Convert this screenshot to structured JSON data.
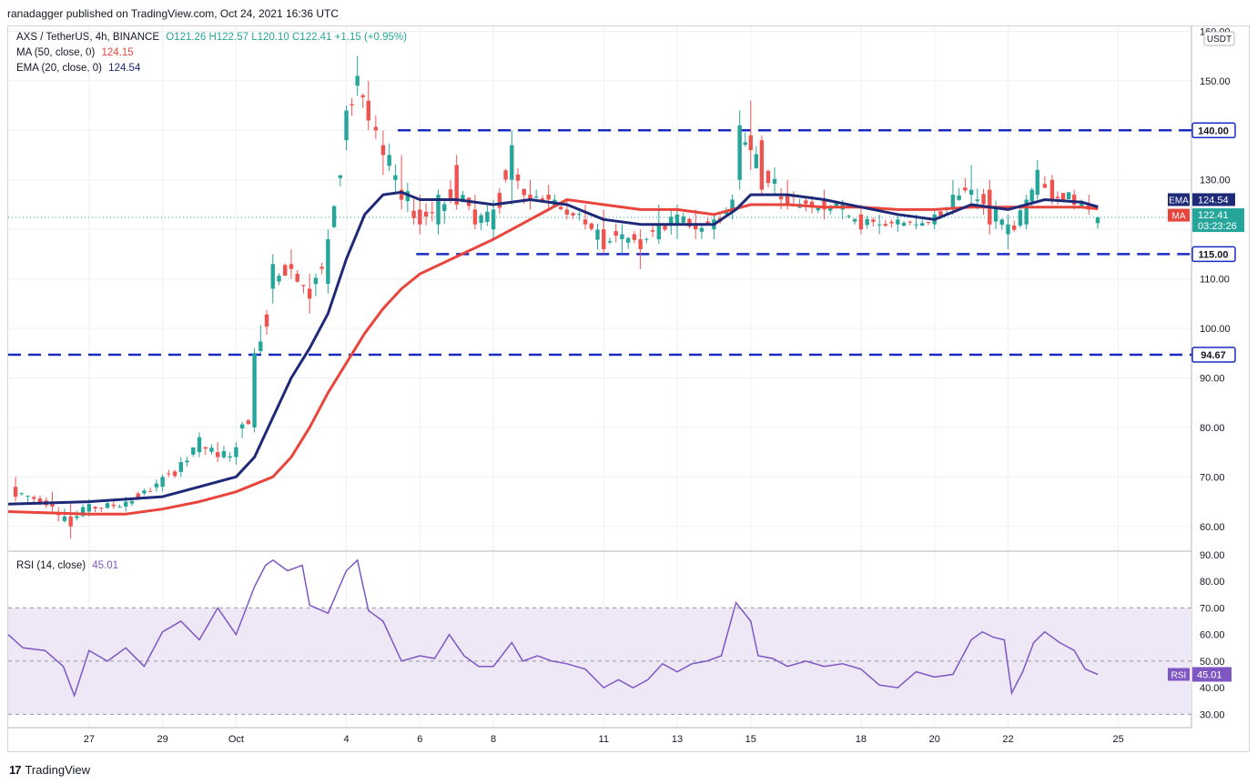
{
  "header": {
    "published": "ranadagger published on TradingView.com, Oct 24, 2021 16:36 UTC"
  },
  "legend": {
    "symbol": "AXS / TetherUS, 4h, BINANCE",
    "ohlc": "O121.26  H122.57  L120.10  C122.41  +1.15 (+0.95%)",
    "ma_label": "MA (50, close, 0)",
    "ma_value": "124.15",
    "ema_label": "EMA (20, close, 0)",
    "ema_value": "124.54",
    "rsi_label": "RSI (14, close)",
    "rsi_value": "45.01"
  },
  "footer": {
    "brand": "TradingView",
    "logo": "17"
  },
  "colors": {
    "up": "#26a69a",
    "down": "#ef5350",
    "ema": "#1e2a78",
    "ma": "#e8453c",
    "level": "#1a2bc4",
    "rsi": "#7e57c2",
    "rsi_band": "#ede7f6",
    "grid": "#eef0f3"
  },
  "chart_data": [
    {
      "type": "candlestick",
      "title": "AXS / TetherUS, 4h, BINANCE",
      "currency": "USDT",
      "ylim": [
        55,
        161
      ],
      "y_ticks": [
        "60.00",
        "70.00",
        "80.00",
        "90.00",
        "100.00",
        "110.00",
        "130.00",
        "150.00",
        "160.00"
      ],
      "x_ticks": [
        {
          "label": "27",
          "day": 27
        },
        {
          "label": "29",
          "day": 29
        },
        {
          "label": "Oct",
          "day": 31
        },
        {
          "label": "4",
          "day": 34
        },
        {
          "label": "6",
          "day": 36
        },
        {
          "label": "8",
          "day": 38
        },
        {
          "label": "11",
          "day": 41
        },
        {
          "label": "13",
          "day": 43
        },
        {
          "label": "15",
          "day": 45
        },
        {
          "label": "18",
          "day": 48
        },
        {
          "label": "20",
          "day": 50
        },
        {
          "label": "22",
          "day": 52
        },
        {
          "label": "25",
          "day": 55
        }
      ],
      "x_range_days": [
        24.8,
        56.99
      ],
      "levels": [
        {
          "label": "140.00",
          "value": 140.0,
          "from_day": 35.4
        },
        {
          "label": "115.00",
          "value": 115.0,
          "from_day": 35.9
        },
        {
          "label": "94.67",
          "value": 94.67,
          "from_day": 24.8
        }
      ],
      "price_tags": [
        {
          "name": "EMA",
          "value": "124.54",
          "y": 124.54,
          "color": "#1e2a78"
        },
        {
          "name": "MA",
          "value": "124.15",
          "y": 124.15,
          "color": "#e8453c"
        },
        {
          "name": "last",
          "value": "122.41",
          "countdown": "03:23:26",
          "y": 122.41,
          "color": "#26a69a"
        }
      ],
      "anchors": [
        {
          "day": 25.0,
          "o": 68,
          "h": 70,
          "l": 65,
          "c": 66
        },
        {
          "day": 26.0,
          "o": 65,
          "h": 67,
          "l": 63,
          "c": 64
        },
        {
          "day": 26.5,
          "o": 62,
          "h": 65,
          "l": 57.5,
          "c": 60
        },
        {
          "day": 27.0,
          "o": 63,
          "h": 65.5,
          "l": 62,
          "c": 64.5
        },
        {
          "day": 28.0,
          "o": 64,
          "h": 66,
          "l": 63,
          "c": 65
        },
        {
          "day": 29.0,
          "o": 68,
          "h": 70.5,
          "l": 67,
          "c": 70
        },
        {
          "day": 29.5,
          "o": 71,
          "h": 74,
          "l": 70,
          "c": 73
        },
        {
          "day": 30.0,
          "o": 75,
          "h": 79,
          "l": 74,
          "c": 78
        },
        {
          "day": 30.5,
          "o": 75,
          "h": 77,
          "l": 73,
          "c": 74
        },
        {
          "day": 31.0,
          "o": 74,
          "h": 77,
          "l": 72.5,
          "c": 76
        },
        {
          "day": 31.5,
          "o": 80,
          "h": 96,
          "l": 79,
          "c": 95
        },
        {
          "day": 32.0,
          "o": 108,
          "h": 115,
          "l": 105,
          "c": 113
        },
        {
          "day": 32.5,
          "o": 113,
          "h": 116,
          "l": 110,
          "c": 112
        },
        {
          "day": 33.0,
          "o": 108,
          "h": 111,
          "l": 103,
          "c": 106
        },
        {
          "day": 33.5,
          "o": 109,
          "h": 120,
          "l": 107,
          "c": 118
        },
        {
          "day": 34.0,
          "o": 138,
          "h": 145,
          "l": 136,
          "c": 144
        },
        {
          "day": 34.3,
          "o": 149,
          "h": 155,
          "l": 147,
          "c": 151
        },
        {
          "day": 34.6,
          "o": 146,
          "h": 150,
          "l": 140,
          "c": 142
        },
        {
          "day": 35.0,
          "o": 137,
          "h": 140,
          "l": 131,
          "c": 135
        },
        {
          "day": 35.5,
          "o": 128,
          "h": 135,
          "l": 124,
          "c": 126
        },
        {
          "day": 36.0,
          "o": 124,
          "h": 127,
          "l": 119,
          "c": 121
        },
        {
          "day": 36.5,
          "o": 121,
          "h": 128,
          "l": 119,
          "c": 127
        },
        {
          "day": 37.0,
          "o": 133,
          "h": 135,
          "l": 124,
          "c": 125
        },
        {
          "day": 37.5,
          "o": 124,
          "h": 127,
          "l": 120,
          "c": 121
        },
        {
          "day": 38.0,
          "o": 120,
          "h": 126,
          "l": 118,
          "c": 124
        },
        {
          "day": 38.5,
          "o": 130,
          "h": 140,
          "l": 125,
          "c": 137
        },
        {
          "day": 39.0,
          "o": 127,
          "h": 130,
          "l": 124,
          "c": 126
        },
        {
          "day": 39.5,
          "o": 127,
          "h": 129,
          "l": 124,
          "c": 126
        },
        {
          "day": 40.0,
          "o": 124,
          "h": 126,
          "l": 122,
          "c": 123
        },
        {
          "day": 40.5,
          "o": 122,
          "h": 125,
          "l": 120,
          "c": 121
        },
        {
          "day": 41.0,
          "o": 120,
          "h": 124,
          "l": 115,
          "c": 116
        },
        {
          "day": 41.5,
          "o": 118,
          "h": 121,
          "l": 115,
          "c": 119
        },
        {
          "day": 42.0,
          "o": 118,
          "h": 120,
          "l": 112,
          "c": 116
        },
        {
          "day": 42.5,
          "o": 118,
          "h": 125,
          "l": 117,
          "c": 121
        },
        {
          "day": 43.0,
          "o": 121,
          "h": 125,
          "l": 118,
          "c": 123
        },
        {
          "day": 43.5,
          "o": 121,
          "h": 124,
          "l": 118,
          "c": 120
        },
        {
          "day": 44.0,
          "o": 120,
          "h": 123,
          "l": 118,
          "c": 122
        },
        {
          "day": 44.5,
          "o": 124,
          "h": 127,
          "l": 122,
          "c": 126
        },
        {
          "day": 44.7,
          "o": 130,
          "h": 144,
          "l": 128,
          "c": 141
        },
        {
          "day": 45.0,
          "o": 139,
          "h": 146,
          "l": 132,
          "c": 136
        },
        {
          "day": 45.3,
          "o": 138,
          "h": 139,
          "l": 127,
          "c": 128
        },
        {
          "day": 46.0,
          "o": 127,
          "h": 130,
          "l": 124,
          "c": 125
        },
        {
          "day": 47.0,
          "o": 126,
          "h": 128,
          "l": 122,
          "c": 124
        },
        {
          "day": 47.5,
          "o": 124,
          "h": 126,
          "l": 122,
          "c": 125
        },
        {
          "day": 48.0,
          "o": 123,
          "h": 125,
          "l": 119,
          "c": 120
        },
        {
          "day": 48.5,
          "o": 121,
          "h": 123,
          "l": 119,
          "c": 121
        },
        {
          "day": 49.0,
          "o": 121,
          "h": 123,
          "l": 119.5,
          "c": 122
        },
        {
          "day": 49.5,
          "o": 121,
          "h": 123,
          "l": 120,
          "c": 121
        },
        {
          "day": 50.0,
          "o": 121,
          "h": 124,
          "l": 120,
          "c": 123
        },
        {
          "day": 50.5,
          "o": 124,
          "h": 130,
          "l": 123,
          "c": 127
        },
        {
          "day": 51.0,
          "o": 127,
          "h": 133,
          "l": 125,
          "c": 128
        },
        {
          "day": 51.5,
          "o": 128,
          "h": 130,
          "l": 119,
          "c": 121
        },
        {
          "day": 52.0,
          "o": 119,
          "h": 123,
          "l": 116,
          "c": 121
        },
        {
          "day": 52.5,
          "o": 121,
          "h": 127,
          "l": 120,
          "c": 126
        },
        {
          "day": 52.8,
          "o": 127,
          "h": 134,
          "l": 126,
          "c": 132
        },
        {
          "day": 53.2,
          "o": 130,
          "h": 131,
          "l": 125,
          "c": 126
        },
        {
          "day": 53.8,
          "o": 127,
          "h": 128,
          "l": 124,
          "c": 125
        },
        {
          "day": 54.2,
          "o": 125,
          "h": 127,
          "l": 123,
          "c": 124
        },
        {
          "day": 54.44,
          "o": 121.26,
          "h": 122.57,
          "l": 120.1,
          "c": 122.41
        }
      ],
      "ema20": [
        [
          24.8,
          64.5
        ],
        [
          27,
          65
        ],
        [
          29,
          66
        ],
        [
          30,
          68
        ],
        [
          31,
          70
        ],
        [
          31.5,
          74
        ],
        [
          32,
          82
        ],
        [
          32.5,
          90
        ],
        [
          33,
          96
        ],
        [
          33.5,
          103
        ],
        [
          34,
          114
        ],
        [
          34.5,
          123
        ],
        [
          35,
          127
        ],
        [
          35.5,
          127.5
        ],
        [
          36,
          126
        ],
        [
          37,
          126
        ],
        [
          38,
          125
        ],
        [
          39,
          126
        ],
        [
          40,
          125
        ],
        [
          41,
          122
        ],
        [
          42,
          121
        ],
        [
          43,
          121
        ],
        [
          44,
          121
        ],
        [
          44.6,
          124
        ],
        [
          45,
          127
        ],
        [
          46,
          127
        ],
        [
          47,
          126
        ],
        [
          48,
          124.5
        ],
        [
          49,
          123
        ],
        [
          50,
          122
        ],
        [
          51,
          125
        ],
        [
          52,
          124
        ],
        [
          53,
          126
        ],
        [
          54,
          125.5
        ],
        [
          54.45,
          124.54
        ]
      ],
      "ma50": [
        [
          24.8,
          63
        ],
        [
          27,
          62.5
        ],
        [
          28,
          62.5
        ],
        [
          29,
          63.5
        ],
        [
          30,
          65
        ],
        [
          31,
          67
        ],
        [
          32,
          70
        ],
        [
          32.5,
          74
        ],
        [
          33,
          80
        ],
        [
          33.5,
          87
        ],
        [
          34,
          93
        ],
        [
          34.5,
          99
        ],
        [
          35,
          104
        ],
        [
          35.5,
          108
        ],
        [
          36,
          111
        ],
        [
          37,
          114.5
        ],
        [
          38,
          118
        ],
        [
          39,
          122
        ],
        [
          40,
          126
        ],
        [
          41,
          125
        ],
        [
          42,
          124
        ],
        [
          43,
          124
        ],
        [
          44,
          123
        ],
        [
          45,
          125
        ],
        [
          46,
          125
        ],
        [
          47,
          124.5
        ],
        [
          48,
          124.5
        ],
        [
          49,
          124
        ],
        [
          50,
          124
        ],
        [
          51,
          124.5
        ],
        [
          52,
          124.5
        ],
        [
          53,
          124.5
        ],
        [
          54,
          124.5
        ],
        [
          54.45,
          124.15
        ]
      ]
    },
    {
      "type": "line",
      "title": "RSI (14, close)",
      "ylim": [
        25,
        91
      ],
      "y_ticks": [
        "30.00",
        "40.00",
        "50.00",
        "60.00",
        "70.00",
        "80.00",
        "90.00"
      ],
      "band": [
        30,
        70
      ],
      "last_tag": "45.01",
      "series": [
        {
          "name": "RSI",
          "values": [
            [
              24.8,
              60
            ],
            [
              25.2,
              55
            ],
            [
              25.8,
              54
            ],
            [
              26.3,
              48
            ],
            [
              26.6,
              37
            ],
            [
              27,
              54
            ],
            [
              27.5,
              50
            ],
            [
              28,
              55
            ],
            [
              28.5,
              48
            ],
            [
              29,
              61
            ],
            [
              29.5,
              65
            ],
            [
              30,
              58
            ],
            [
              30.5,
              70
            ],
            [
              31,
              60
            ],
            [
              31.5,
              78
            ],
            [
              31.8,
              86
            ],
            [
              32,
              88
            ],
            [
              32.4,
              84
            ],
            [
              32.8,
              86
            ],
            [
              33,
              71
            ],
            [
              33.5,
              68
            ],
            [
              34,
              84
            ],
            [
              34.3,
              88
            ],
            [
              34.6,
              69
            ],
            [
              35,
              65
            ],
            [
              35.5,
              50
            ],
            [
              36,
              52
            ],
            [
              36.4,
              51
            ],
            [
              36.8,
              60
            ],
            [
              37.2,
              52
            ],
            [
              37.6,
              48
            ],
            [
              38,
              48
            ],
            [
              38.5,
              57
            ],
            [
              38.8,
              50
            ],
            [
              39.2,
              52
            ],
            [
              39.6,
              50
            ],
            [
              40,
              49
            ],
            [
              40.5,
              47
            ],
            [
              41,
              40
            ],
            [
              41.4,
              43
            ],
            [
              41.8,
              40
            ],
            [
              42.2,
              43
            ],
            [
              42.6,
              49
            ],
            [
              43,
              46
            ],
            [
              43.4,
              49
            ],
            [
              43.8,
              50
            ],
            [
              44.2,
              52
            ],
            [
              44.6,
              72
            ],
            [
              45,
              65
            ],
            [
              45.2,
              52
            ],
            [
              45.6,
              51
            ],
            [
              46,
              48
            ],
            [
              46.5,
              50
            ],
            [
              47,
              48
            ],
            [
              47.5,
              49
            ],
            [
              48,
              47
            ],
            [
              48.5,
              41
            ],
            [
              49,
              40
            ],
            [
              49.5,
              46
            ],
            [
              50,
              44
            ],
            [
              50.5,
              45
            ],
            [
              51,
              58
            ],
            [
              51.3,
              61
            ],
            [
              51.6,
              59
            ],
            [
              51.9,
              58
            ],
            [
              52.1,
              38
            ],
            [
              52.4,
              46
            ],
            [
              52.7,
              57
            ],
            [
              53,
              61
            ],
            [
              53.4,
              57
            ],
            [
              53.8,
              54
            ],
            [
              54.1,
              47
            ],
            [
              54.44,
              45.01
            ]
          ]
        }
      ]
    }
  ]
}
